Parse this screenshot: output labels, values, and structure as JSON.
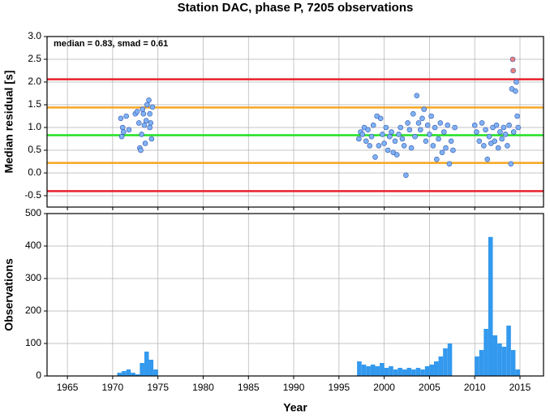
{
  "chart_data": [
    {
      "type": "scatter",
      "title": "Station DAC, phase P, 7205 observations",
      "annotation": "median = 0.83, smad = 0.61",
      "ylabel": "Median residual [s]",
      "xlim": [
        1962.75,
        2017.6
      ],
      "ylim": [
        -0.75,
        3.0
      ],
      "xticks": [
        1965,
        1970,
        1975,
        1980,
        1985,
        1990,
        1995,
        2000,
        2005,
        2010,
        2015
      ],
      "yticks": [
        -0.5,
        {
          "value": 0,
          "label": "0.0"
        },
        0.5,
        {
          "value": 1,
          "label": "1.0"
        },
        1.5,
        {
          "value": 2,
          "label": "2.0"
        },
        2.5,
        {
          "value": 3,
          "label": "3.0"
        }
      ],
      "grid": true,
      "hlines": [
        {
          "value": 2.06,
          "color": "#e8202a"
        },
        {
          "value": 1.44,
          "color": "#f5a623"
        },
        {
          "value": 0.83,
          "color": "#22e022"
        },
        {
          "value": 0.22,
          "color": "#f5a623"
        },
        {
          "value": -0.4,
          "color": "#e8202a"
        }
      ],
      "series": [
        {
          "color": "#7fb2f5",
          "x": [
            1970.9,
            1971,
            1971.1,
            1971.2,
            1971.5,
            1971.8,
            1972.5,
            1972.7,
            1972.9,
            1973,
            1973.1,
            1973.2,
            1973.3,
            1973.4,
            1973.5,
            1973.6,
            1973.7,
            1973.8,
            1974,
            1974.1,
            1974.2,
            1974.3,
            1974.4,
            1974.1,
            1997.2,
            1997.4,
            1997.6,
            1997.8,
            1998,
            1998.2,
            1998.4,
            1998.6,
            1998.8,
            1999,
            1999.2,
            1999.4,
            1999.6,
            1999.8,
            2000,
            2000.2,
            2000.4,
            2000.6,
            2000.8,
            2001,
            2001.2,
            2001.4,
            2001.6,
            2001.8,
            2002,
            2002.2,
            2002.4,
            2002.6,
            2002.8,
            2003,
            2003.2,
            2003.4,
            2003.6,
            2003.8,
            2004,
            2004.2,
            2004.4,
            2004.6,
            2004.8,
            2005,
            2005.2,
            2005.4,
            2005.6,
            2005.8,
            2006,
            2006.2,
            2006.4,
            2006.6,
            2006.8,
            2007,
            2007.2,
            2007.4,
            2007.6,
            2007.8,
            2010,
            2010.2,
            2010.5,
            2010.8,
            2011,
            2011.2,
            2011.4,
            2011.6,
            2011.8,
            2012,
            2012.2,
            2012.4,
            2012.6,
            2012.8,
            2013,
            2013.2,
            2013.4,
            2013.6,
            2013.8,
            2014,
            2014.1,
            2014.3,
            2014.5,
            2014.6,
            2014.7,
            2014.8
          ],
          "values": [
            1.2,
            0.8,
            1.0,
            0.9,
            1.25,
            0.95,
            1.3,
            1.35,
            1.1,
            0.55,
            0.5,
            0.85,
            1.4,
            1.3,
            1.05,
            0.65,
            1.15,
            1.5,
            1.6,
            1.3,
            1.1,
            0.75,
            1.45,
            1.0,
            0.75,
            0.9,
            0.85,
            1.0,
            0.7,
            0.95,
            0.6,
            0.8,
            1.05,
            0.35,
            1.25,
            0.6,
            1.2,
            0.85,
            0.65,
            1.0,
            0.5,
            0.8,
            0.9,
            0.45,
            0.7,
            0.4,
            0.85,
            1.0,
            0.75,
            0.6,
            -0.05,
            1.1,
            0.95,
            0.55,
            1.3,
            0.8,
            1.7,
            1.1,
            0.95,
            1.2,
            1.4,
            0.7,
            1.05,
            0.85,
            1.25,
            0.6,
            1.0,
            0.3,
            0.75,
            1.1,
            0.45,
            0.9,
            0.55,
            1.05,
            0.2,
            0.7,
            0.5,
            1.0,
            1.05,
            0.9,
            0.7,
            1.1,
            0.6,
            0.95,
            0.3,
            0.8,
            0.65,
            1.0,
            0.7,
            1.05,
            0.55,
            0.9,
            0.75,
            1.0,
            0.85,
            0.6,
            1.05,
            0.2,
            1.85,
            0.9,
            1.8,
            2.0,
            1.25,
            1.0
          ]
        },
        {
          "color": "#f08078",
          "x": [
            2014.2,
            2014.25
          ],
          "values": [
            2.5,
            2.25
          ]
        }
      ]
    },
    {
      "type": "histogram",
      "ylabel": "Observations",
      "xlabel": "Year",
      "color": "#3399ee",
      "xlim": [
        1962.75,
        2017.6
      ],
      "ylim": [
        0,
        500
      ],
      "xticks": [
        1965,
        1970,
        1975,
        1980,
        1985,
        1990,
        1995,
        2000,
        2005,
        2010,
        2015
      ],
      "yticks": [
        0,
        100,
        200,
        300,
        400,
        500
      ],
      "grid": true,
      "bins": [
        1970.5,
        1971,
        1971.5,
        1972,
        1972.5,
        1973,
        1973.5,
        1974,
        1974.5,
        1975,
        1975.5,
        1976,
        1976.5,
        1977,
        1977.5,
        1978,
        1978.5,
        1979,
        1979.5,
        1980,
        1980.5,
        1981,
        1981.5,
        1982,
        1982.5,
        1983,
        1983.5,
        1984,
        1984.5,
        1985,
        1985.5,
        1986,
        1986.5,
        1987,
        1987.5,
        1988,
        1988.5,
        1989,
        1989.5,
        1990,
        1990.5,
        1991,
        1991.5,
        1992,
        1992.5,
        1993,
        1993.5,
        1994,
        1994.5,
        1995,
        1995.5,
        1996,
        1996.5,
        1997,
        1997.5,
        1998,
        1998.5,
        1999,
        1999.5,
        2000,
        2000.5,
        2001,
        2001.5,
        2002,
        2002.5,
        2003,
        2003.5,
        2004,
        2004.5,
        2005,
        2005.5,
        2006,
        2006.5,
        2007,
        2007.5,
        2008,
        2008.5,
        2009,
        2009.5,
        2010,
        2010.5,
        2011,
        2011.5,
        2012,
        2012.5,
        2013,
        2013.5,
        2014,
        2014.5,
        2015
      ],
      "values": [
        10,
        15,
        20,
        10,
        5,
        40,
        75,
        50,
        20,
        0,
        0,
        0,
        0,
        0,
        0,
        0,
        0,
        0,
        0,
        0,
        0,
        0,
        0,
        0,
        0,
        0,
        0,
        0,
        0,
        0,
        0,
        0,
        0,
        0,
        0,
        0,
        0,
        0,
        0,
        0,
        0,
        0,
        0,
        0,
        0,
        0,
        0,
        0,
        0,
        0,
        0,
        0,
        0,
        45,
        35,
        30,
        35,
        30,
        40,
        25,
        30,
        20,
        25,
        20,
        25,
        20,
        25,
        20,
        30,
        35,
        45,
        60,
        85,
        100,
        0,
        0,
        0,
        0,
        0,
        60,
        80,
        145,
        428,
        125,
        100,
        90,
        155,
        80,
        20
      ]
    }
  ]
}
